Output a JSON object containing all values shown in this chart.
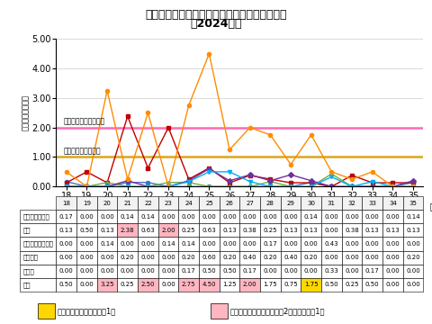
{
  "title1": "青森県の水痘　定点当たり報告数（保健所別）",
  "title2": "（2024年）",
  "ylabel": "定点当たり報告数",
  "xlabel_unit": "週",
  "weeks": [
    18,
    19,
    20,
    21,
    22,
    23,
    24,
    25,
    26,
    27,
    28,
    29,
    30,
    31,
    32,
    33,
    34,
    35
  ],
  "series_order": [
    "東地方・青森市",
    "弘前",
    "三戸地方・八戸市",
    "五所川原",
    "上十三",
    "むつ"
  ],
  "series": {
    "東地方・青森市": {
      "color": "#4472C4",
      "marker": "o",
      "values": [
        0.17,
        0.0,
        0.0,
        0.14,
        0.14,
        0.0,
        0.0,
        0.0,
        0.0,
        0.0,
        0.0,
        0.0,
        0.14,
        0.0,
        0.0,
        0.0,
        0.0,
        0.14
      ]
    },
    "弘前": {
      "color": "#C00000",
      "marker": "s",
      "values": [
        0.13,
        0.5,
        0.13,
        2.38,
        0.63,
        2.0,
        0.25,
        0.63,
        0.13,
        0.38,
        0.25,
        0.13,
        0.13,
        0.0,
        0.38,
        0.13,
        0.13,
        0.13
      ]
    },
    "三戸地方・八戸市": {
      "color": "#70AD47",
      "marker": "^",
      "values": [
        0.0,
        0.0,
        0.14,
        0.0,
        0.0,
        0.14,
        0.14,
        0.0,
        0.0,
        0.0,
        0.17,
        0.0,
        0.0,
        0.43,
        0.0,
        0.0,
        0.0,
        0.0
      ]
    },
    "五所川原": {
      "color": "#7030A0",
      "marker": "D",
      "values": [
        0.0,
        0.0,
        0.0,
        0.2,
        0.0,
        0.0,
        0.2,
        0.6,
        0.2,
        0.4,
        0.2,
        0.4,
        0.2,
        0.0,
        0.0,
        0.0,
        0.0,
        0.2
      ]
    },
    "上十三": {
      "color": "#00B0F0",
      "marker": "v",
      "values": [
        0.0,
        0.0,
        0.0,
        0.0,
        0.0,
        0.0,
        0.17,
        0.5,
        0.5,
        0.17,
        0.0,
        0.0,
        0.0,
        0.33,
        0.0,
        0.17,
        0.0,
        0.0
      ]
    },
    "むつ": {
      "color": "#FF8C00",
      "marker": "o",
      "values": [
        0.5,
        0.0,
        3.25,
        0.25,
        2.5,
        0.0,
        2.75,
        4.5,
        1.25,
        2.0,
        1.75,
        0.75,
        1.75,
        0.5,
        0.25,
        0.5,
        0.0,
        0.0
      ]
    }
  },
  "alert_line": 2.0,
  "caution_line": 1.0,
  "alert_line_color": "#FF69B4",
  "caution_line_color": "#DAA520",
  "alert_label": "警報レベル開始基準値",
  "caution_label": "注意報レベル基準値",
  "ylim": [
    0.0,
    5.0
  ],
  "yticks": [
    0.0,
    1.0,
    2.0,
    3.0,
    4.0,
    5.0
  ],
  "table_rows": [
    "東地方・青森市",
    "弘前",
    "三戸地方・八戸市",
    "五所川原",
    "上十三",
    "むつ"
  ],
  "pink_color": "#FFB6C1",
  "yellow_color": "#FFD700",
  "legend_note1": "：注意報レベル（基準値1）",
  "legend_note2": "：警報レベル（開始基準値2、終息基準値1）"
}
